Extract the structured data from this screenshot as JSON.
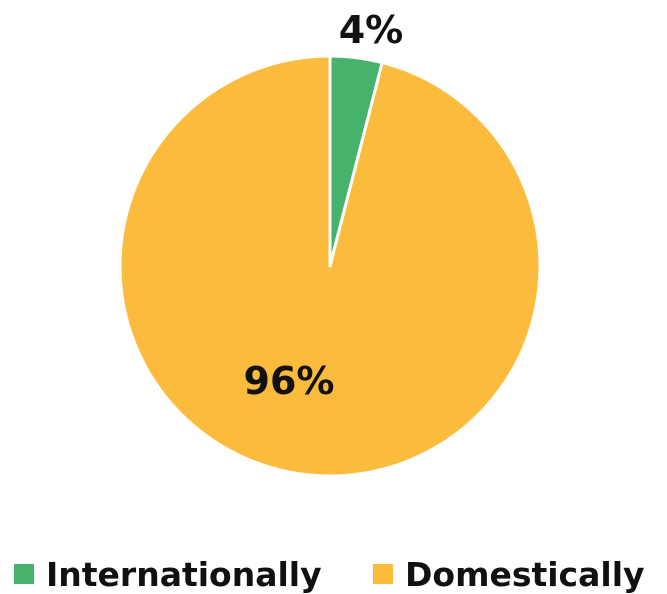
{
  "chart_data": {
    "type": "pie",
    "categories": [
      "Internationally",
      "Domestically"
    ],
    "values": [
      4,
      96
    ],
    "data_labels": [
      "4%",
      "96%"
    ],
    "colors": [
      "#47b26b",
      "#fbbb3c"
    ],
    "legend_position": "bottom"
  }
}
